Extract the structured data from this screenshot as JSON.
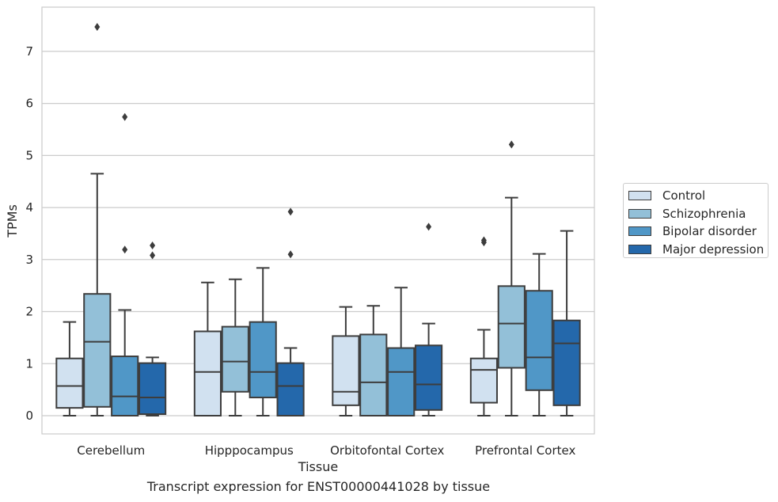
{
  "chart_data": {
    "type": "boxplot",
    "title": "Transcript expression for ENST00000441028 by tissue",
    "xlabel": "Tissue",
    "ylabel": "TPMs",
    "ylim": [
      -0.35,
      7.85
    ],
    "yticks": [
      0,
      1,
      2,
      3,
      4,
      5,
      6,
      7
    ],
    "grid": "horizontal",
    "legend_position": "right",
    "categories": [
      "Cerebellum",
      "Hipppocampus",
      "Orbitofontal Cortex",
      "Prefrontal Cortex"
    ],
    "series": [
      {
        "name": "Control",
        "color": "#d1e1f0",
        "boxes": [
          {
            "whislo": 0,
            "q1": 0.15,
            "med": 0.57,
            "q3": 1.1,
            "whishi": 1.8,
            "fliers": []
          },
          {
            "whislo": 0,
            "q1": 0,
            "med": 0.84,
            "q3": 1.62,
            "whishi": 2.56,
            "fliers": []
          },
          {
            "whislo": 0,
            "q1": 0.2,
            "med": 0.46,
            "q3": 1.53,
            "whishi": 2.09,
            "fliers": []
          },
          {
            "whislo": 0,
            "q1": 0.25,
            "med": 0.88,
            "q3": 1.1,
            "whishi": 1.65,
            "fliers": [
              3.33,
              3.37
            ]
          }
        ]
      },
      {
        "name": "Schizophrenia",
        "color": "#93c0d8",
        "boxes": [
          {
            "whislo": 0,
            "q1": 0.17,
            "med": 1.42,
            "q3": 2.34,
            "whishi": 4.65,
            "fliers": [
              7.47
            ]
          },
          {
            "whislo": 0,
            "q1": 0.46,
            "med": 1.04,
            "q3": 1.71,
            "whishi": 2.62,
            "fliers": []
          },
          {
            "whislo": 0,
            "q1": 0,
            "med": 0.64,
            "q3": 1.56,
            "whishi": 2.11,
            "fliers": []
          },
          {
            "whislo": 0,
            "q1": 0.92,
            "med": 1.77,
            "q3": 2.49,
            "whishi": 4.19,
            "fliers": [
              5.21
            ]
          }
        ]
      },
      {
        "name": "Bipolar disorder",
        "color": "#5097c7",
        "boxes": [
          {
            "whislo": 0,
            "q1": 0,
            "med": 0.37,
            "q3": 1.14,
            "whishi": 2.03,
            "fliers": [
              5.74,
              3.19
            ]
          },
          {
            "whislo": 0,
            "q1": 0.35,
            "med": 0.84,
            "q3": 1.8,
            "whishi": 2.84,
            "fliers": []
          },
          {
            "whislo": 0,
            "q1": 0,
            "med": 0.84,
            "q3": 1.3,
            "whishi": 2.46,
            "fliers": []
          },
          {
            "whislo": 0,
            "q1": 0.49,
            "med": 1.12,
            "q3": 2.4,
            "whishi": 3.11,
            "fliers": []
          }
        ]
      },
      {
        "name": "Major depression",
        "color": "#2468ab",
        "boxes": [
          {
            "whislo": 0,
            "q1": 0.03,
            "med": 0.35,
            "q3": 1.01,
            "whishi": 1.12,
            "fliers": [
              3.27,
              3.08
            ]
          },
          {
            "whislo": 0,
            "q1": 0,
            "med": 0.57,
            "q3": 1.01,
            "whishi": 1.3,
            "fliers": [
              3.92,
              3.1
            ]
          },
          {
            "whislo": 0,
            "q1": 0.11,
            "med": 0.6,
            "q3": 1.35,
            "whishi": 1.77,
            "fliers": [
              3.63
            ]
          },
          {
            "whislo": 0,
            "q1": 0.2,
            "med": 1.39,
            "q3": 1.83,
            "whishi": 3.55,
            "fliers": []
          }
        ]
      }
    ]
  }
}
